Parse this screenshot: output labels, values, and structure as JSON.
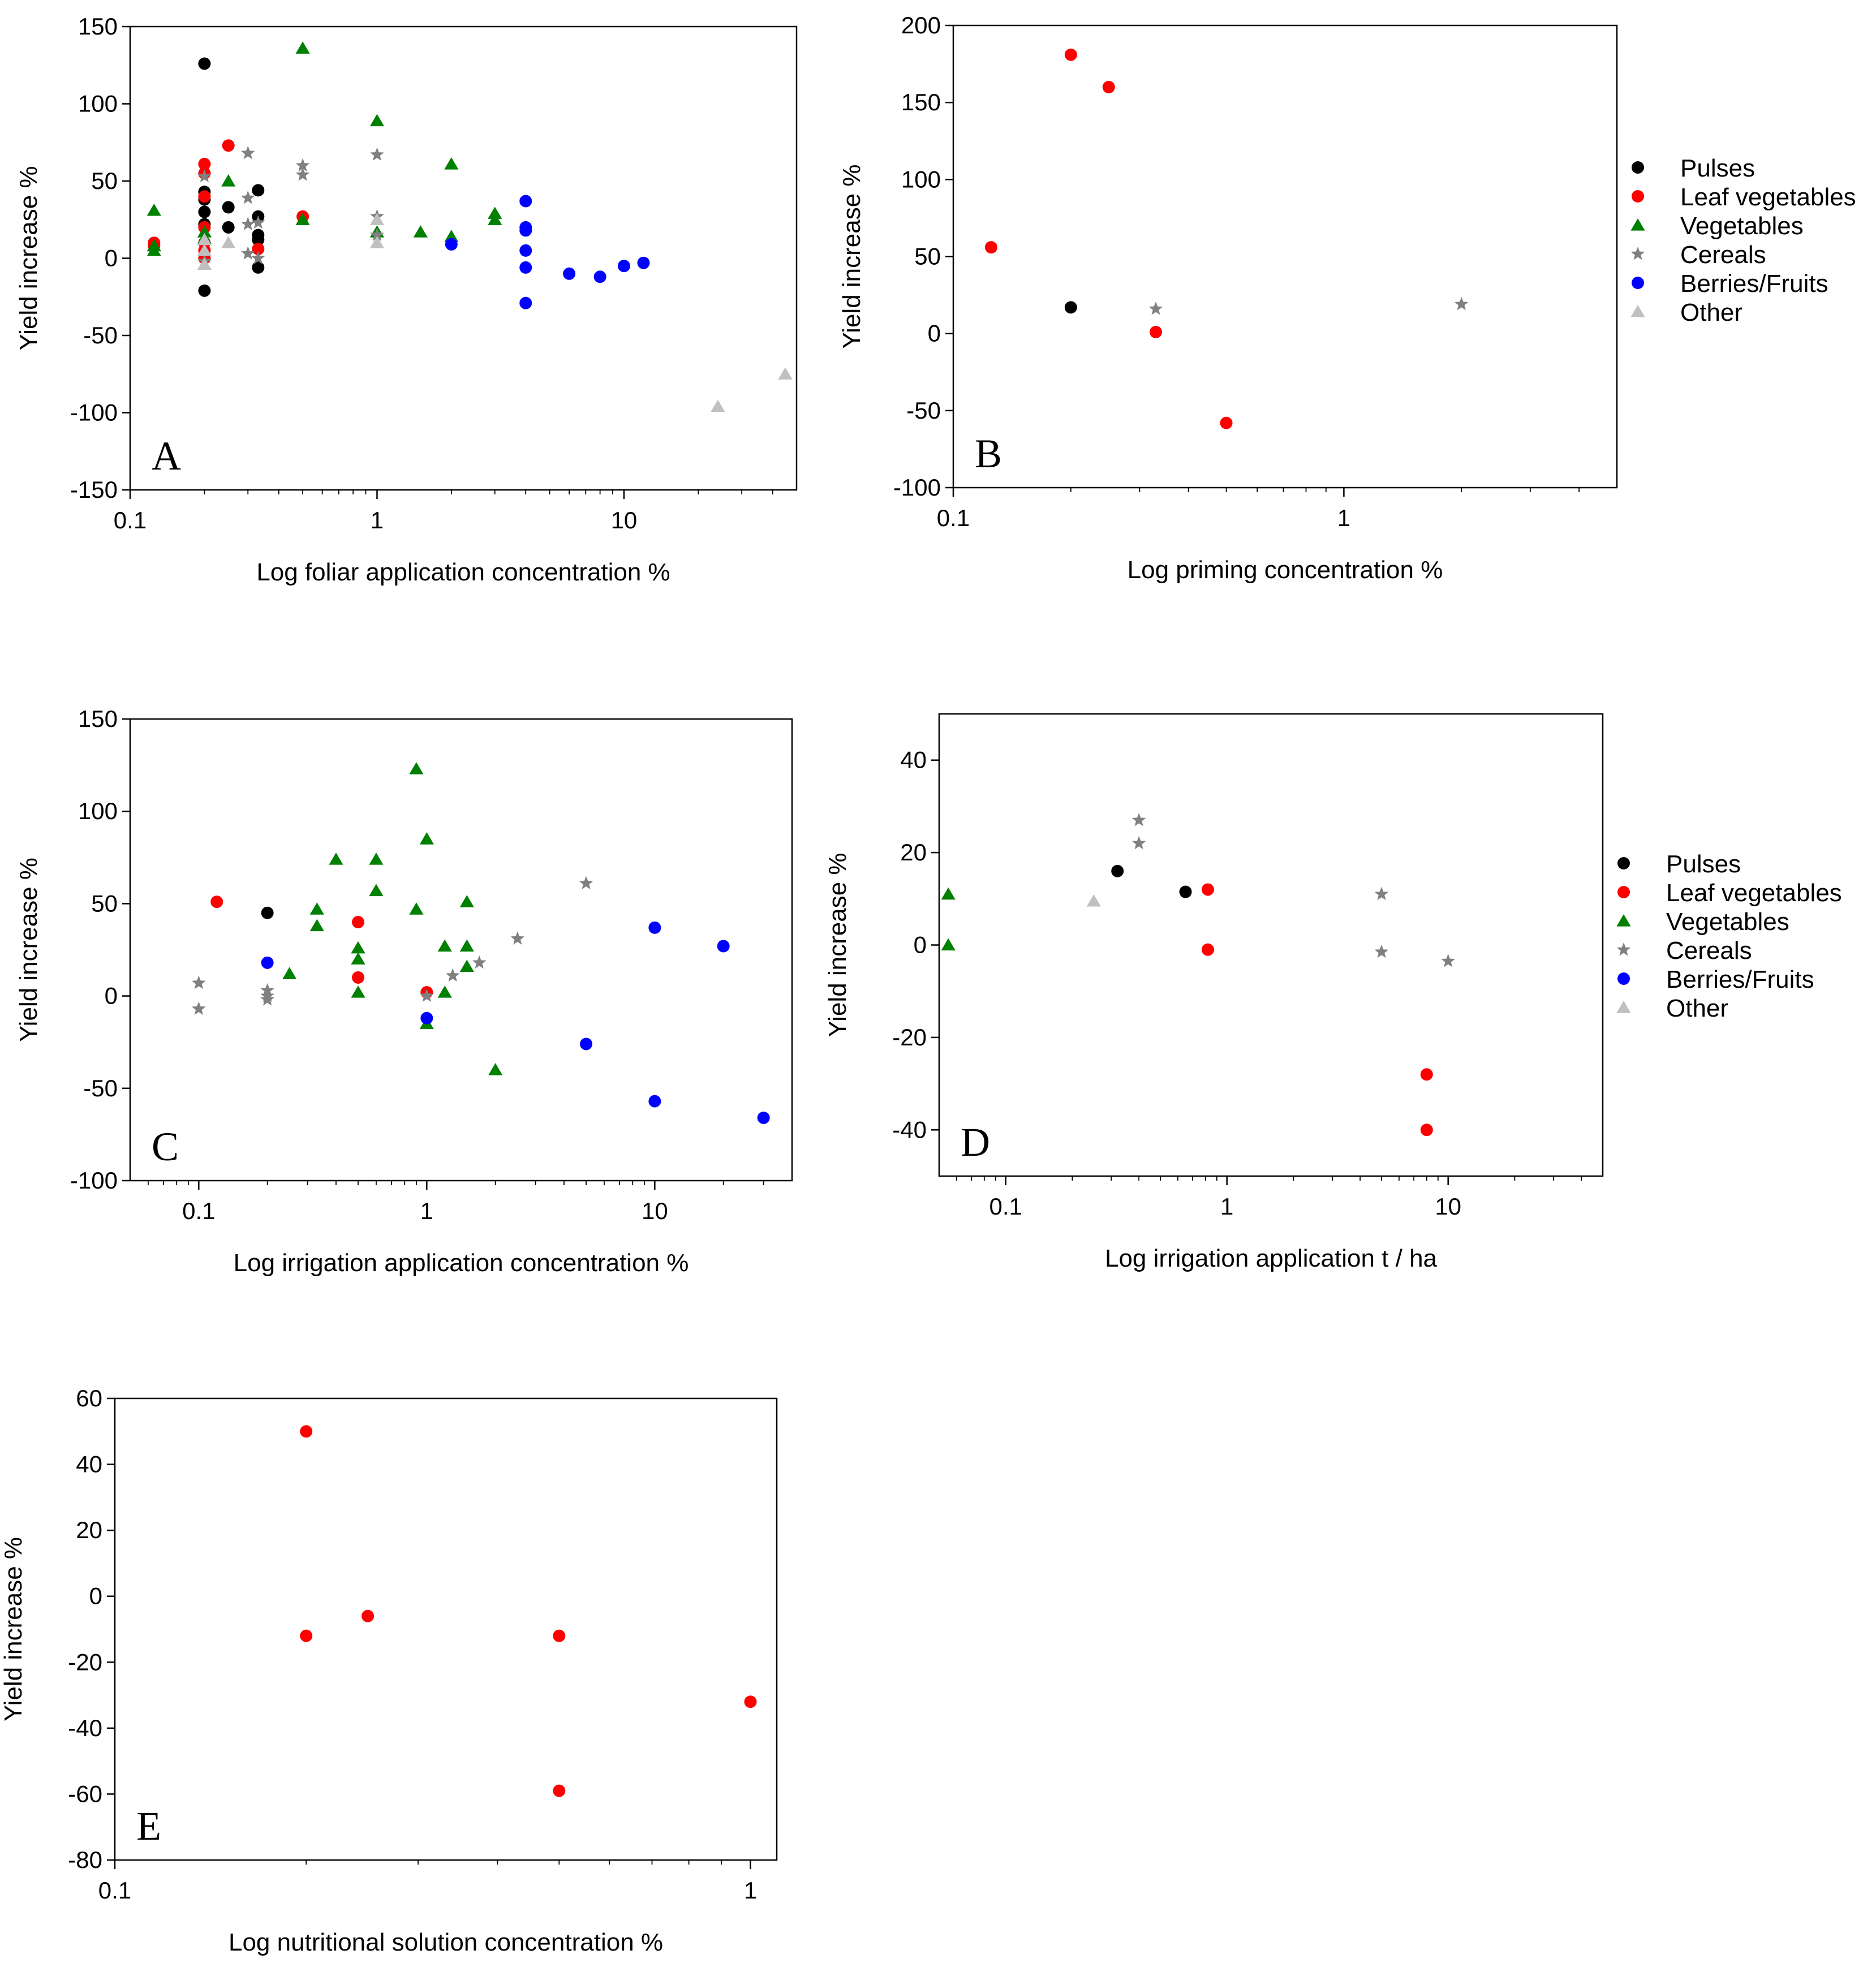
{
  "colors": {
    "Pulses": "#000000",
    "Leaf vegetables": "#ff0000",
    "Vegetables": "#008000",
    "Cereals": "#808080",
    "Berries/Fruits": "#0000ff",
    "Other": "#c0c0c0"
  },
  "markers": {
    "Pulses": "circle",
    "Leaf vegetables": "circle",
    "Vegetables": "triangle",
    "Cereals": "star",
    "Berries/Fruits": "circle",
    "Other": "triangle"
  },
  "legend_entries": [
    "Pulses",
    "Leaf vegetables",
    "Vegetables",
    "Cereals",
    "Berries/Fruits",
    "Other"
  ],
  "chart_data": [
    {
      "id": "A",
      "type": "scatter",
      "panel_label": "A",
      "xlabel": "Log foliar application concentration %",
      "ylabel": "Yield increase %",
      "xscale": "log",
      "xlim": [
        0.1,
        50
      ],
      "ylim": [
        -150,
        150
      ],
      "xticks": [
        0.1,
        1,
        10
      ],
      "xtick_labels": [
        "0.1",
        "1",
        "10"
      ],
      "yticks": [
        -150,
        -100,
        -50,
        0,
        50,
        100,
        150
      ],
      "ytick_labels": [
        "-150",
        "-100",
        "-50",
        "0",
        "50",
        "100",
        "150"
      ],
      "series": [
        {
          "name": "Pulses",
          "points": [
            [
              0.2,
              126
            ],
            [
              0.2,
              43
            ],
            [
              0.2,
              38
            ],
            [
              0.2,
              30
            ],
            [
              0.2,
              22
            ],
            [
              0.2,
              -21
            ],
            [
              0.25,
              33
            ],
            [
              0.25,
              20
            ],
            [
              0.33,
              44
            ],
            [
              0.33,
              27
            ],
            [
              0.33,
              15
            ],
            [
              0.33,
              12
            ],
            [
              0.33,
              -6
            ]
          ]
        },
        {
          "name": "Leaf vegetables",
          "points": [
            [
              0.125,
              10
            ],
            [
              0.125,
              8
            ],
            [
              0.2,
              61
            ],
            [
              0.2,
              55
            ],
            [
              0.2,
              40
            ],
            [
              0.2,
              20
            ],
            [
              0.2,
              10
            ],
            [
              0.2,
              5
            ],
            [
              0.2,
              0
            ],
            [
              0.25,
              73
            ],
            [
              0.33,
              6
            ],
            [
              0.5,
              27
            ]
          ]
        },
        {
          "name": "Vegetables",
          "points": [
            [
              0.125,
              31
            ],
            [
              0.125,
              8
            ],
            [
              0.125,
              5
            ],
            [
              0.2,
              17
            ],
            [
              0.2,
              13
            ],
            [
              0.25,
              50
            ],
            [
              0.5,
              136
            ],
            [
              0.5,
              25
            ],
            [
              1,
              89
            ],
            [
              1,
              17
            ],
            [
              1.5,
              17
            ],
            [
              2,
              61
            ],
            [
              2,
              14
            ],
            [
              3,
              29
            ],
            [
              3,
              25
            ]
          ]
        },
        {
          "name": "Cereals",
          "points": [
            [
              0.2,
              53
            ],
            [
              0.3,
              68
            ],
            [
              0.3,
              39
            ],
            [
              0.3,
              22
            ],
            [
              0.3,
              3
            ],
            [
              0.33,
              23
            ],
            [
              0.33,
              0
            ],
            [
              0.5,
              60
            ],
            [
              0.5,
              54
            ],
            [
              1,
              67
            ],
            [
              1,
              27
            ],
            [
              1,
              15
            ],
            [
              0.2,
              -2
            ]
          ]
        },
        {
          "name": "Berries/Fruits",
          "points": [
            [
              2,
              9
            ],
            [
              4,
              37
            ],
            [
              4,
              20
            ],
            [
              4,
              18
            ],
            [
              4,
              5
            ],
            [
              4,
              -6
            ],
            [
              4,
              -29
            ],
            [
              6,
              -10
            ],
            [
              8,
              -12
            ],
            [
              10,
              -5
            ],
            [
              12,
              -3
            ]
          ]
        },
        {
          "name": "Other",
          "points": [
            [
              0.2,
              12
            ],
            [
              0.2,
              5
            ],
            [
              0.2,
              -4
            ],
            [
              0.25,
              10
            ],
            [
              1,
              25
            ],
            [
              1,
              10
            ],
            [
              24,
              -96
            ],
            [
              45,
              -75
            ]
          ]
        }
      ]
    },
    {
      "id": "B",
      "type": "scatter",
      "panel_label": "B",
      "xlabel": "Log priming concentration %",
      "ylabel": "Yield increase %",
      "xscale": "log",
      "xlim": [
        0.1,
        5
      ],
      "ylim": [
        -100,
        200
      ],
      "xticks": [
        0.1,
        1
      ],
      "xtick_labels": [
        "0.1",
        "1"
      ],
      "yticks": [
        -100,
        -50,
        0,
        50,
        100,
        150,
        200
      ],
      "ytick_labels": [
        "-100",
        "-50",
        "0",
        "50",
        "100",
        "150",
        "200"
      ],
      "series": [
        {
          "name": "Pulses",
          "points": [
            [
              0.2,
              17
            ]
          ]
        },
        {
          "name": "Leaf vegetables",
          "points": [
            [
              0.125,
              56
            ],
            [
              0.2,
              181
            ],
            [
              0.25,
              160
            ],
            [
              0.33,
              1
            ],
            [
              0.5,
              -58
            ]
          ]
        },
        {
          "name": "Cereals",
          "points": [
            [
              0.33,
              16
            ],
            [
              2,
              19
            ]
          ]
        }
      ]
    },
    {
      "id": "C",
      "type": "scatter",
      "panel_label": "C",
      "xlabel": "Log irrigation application concentration %",
      "ylabel": "Yield increase %",
      "xscale": "log",
      "xlim": [
        0.05,
        40
      ],
      "ylim": [
        -100,
        150
      ],
      "xticks": [
        0.1,
        1,
        10
      ],
      "xtick_labels": [
        "0.1",
        "1",
        "10"
      ],
      "yticks": [
        -100,
        -50,
        0,
        50,
        100,
        150
      ],
      "ytick_labels": [
        "-100",
        "-50",
        "0",
        "50",
        "100",
        "150"
      ],
      "series": [
        {
          "name": "Pulses",
          "points": [
            [
              0.2,
              45
            ]
          ]
        },
        {
          "name": "Leaf vegetables",
          "points": [
            [
              0.12,
              51
            ],
            [
              0.5,
              40
            ],
            [
              0.5,
              10
            ],
            [
              1,
              2
            ]
          ]
        },
        {
          "name": "Vegetables",
          "points": [
            [
              0.25,
              12
            ],
            [
              0.33,
              47
            ],
            [
              0.33,
              38
            ],
            [
              0.4,
              74
            ],
            [
              0.5,
              26
            ],
            [
              0.5,
              20
            ],
            [
              0.5,
              2
            ],
            [
              0.6,
              74
            ],
            [
              0.6,
              57
            ],
            [
              0.9,
              123
            ],
            [
              0.9,
              47
            ],
            [
              1,
              85
            ],
            [
              1,
              -15
            ],
            [
              1.2,
              27
            ],
            [
              1.2,
              2
            ],
            [
              1.5,
              51
            ],
            [
              1.5,
              27
            ],
            [
              1.5,
              16
            ],
            [
              2,
              -40
            ]
          ]
        },
        {
          "name": "Cereals",
          "points": [
            [
              0.1,
              7
            ],
            [
              0.1,
              -7
            ],
            [
              0.2,
              3
            ],
            [
              0.2,
              0
            ],
            [
              0.2,
              -2
            ],
            [
              1,
              0
            ],
            [
              1.3,
              11
            ],
            [
              1.7,
              18
            ],
            [
              2.5,
              31
            ],
            [
              5,
              61
            ]
          ]
        },
        {
          "name": "Berries/Fruits",
          "points": [
            [
              0.2,
              18
            ],
            [
              1,
              -12
            ],
            [
              5,
              -26
            ],
            [
              10,
              37
            ],
            [
              10,
              -57
            ],
            [
              20,
              27
            ],
            [
              30,
              -66
            ]
          ]
        }
      ]
    },
    {
      "id": "D",
      "type": "scatter",
      "panel_label": "D",
      "xlabel": "Log irrigation application t / ha",
      "ylabel": "Yield increase %",
      "xscale": "log",
      "xlim": [
        0.05,
        50
      ],
      "ylim": [
        -50,
        50
      ],
      "xticks": [
        0.1,
        1,
        10
      ],
      "xtick_labels": [
        "0.1",
        "1",
        "10"
      ],
      "yticks": [
        -40,
        -20,
        0,
        20,
        40
      ],
      "ytick_labels": [
        "-40",
        "-20",
        "0",
        "20",
        "40"
      ],
      "series": [
        {
          "name": "Pulses",
          "points": [
            [
              0.32,
              16
            ],
            [
              0.65,
              11.5
            ]
          ]
        },
        {
          "name": "Leaf vegetables",
          "points": [
            [
              0.82,
              12
            ],
            [
              0.82,
              -1
            ],
            [
              8,
              -28
            ],
            [
              8,
              -40
            ]
          ]
        },
        {
          "name": "Vegetables",
          "points": [
            [
              0.055,
              11
            ],
            [
              0.055,
              0
            ]
          ]
        },
        {
          "name": "Cereals",
          "points": [
            [
              0.4,
              27
            ],
            [
              0.4,
              22
            ],
            [
              5,
              11
            ],
            [
              5,
              -1.5
            ],
            [
              10,
              -3.5
            ]
          ]
        },
        {
          "name": "Other",
          "points": [
            [
              0.25,
              9.5
            ]
          ]
        }
      ]
    },
    {
      "id": "E",
      "type": "scatter",
      "panel_label": "E",
      "xlabel": "Log nutritional solution concentration %",
      "ylabel": "Yield increase %",
      "xscale": "log",
      "xlim": [
        0.1,
        1.1
      ],
      "ylim": [
        -80,
        60
      ],
      "xticks": [
        0.1,
        1
      ],
      "xtick_labels": [
        "0.1",
        "1"
      ],
      "yticks": [
        -80,
        -60,
        -40,
        -20,
        0,
        20,
        40,
        60
      ],
      "ytick_labels": [
        "-80",
        "-60",
        "-40",
        "-20",
        "0",
        "20",
        "40",
        "60"
      ],
      "series": [
        {
          "name": "Leaf vegetables",
          "points": [
            [
              0.2,
              50
            ],
            [
              0.2,
              -12
            ],
            [
              0.25,
              -6
            ],
            [
              0.5,
              -12
            ],
            [
              0.5,
              -59
            ],
            [
              1,
              -32
            ]
          ]
        }
      ]
    }
  ]
}
